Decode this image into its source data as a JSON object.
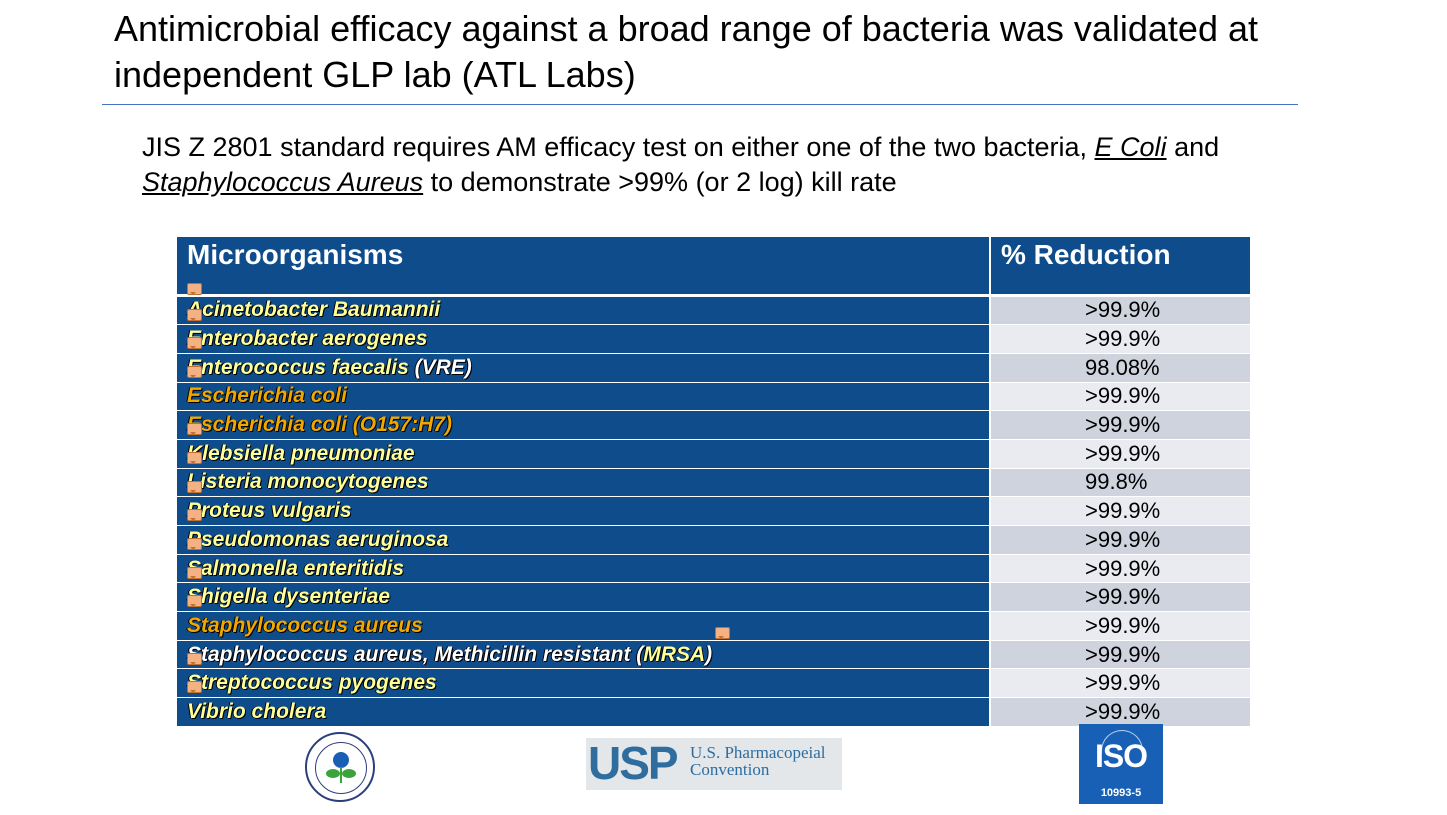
{
  "slide": {
    "title": "Antimicrobial efficacy against a broad range of bacteria was validated at independent GLP lab (ATL Labs)",
    "subtitle": {
      "part1": "JIS Z 2801 standard requires AM efficacy test on either one of the two bacteria, ",
      "organism1": "E Coli",
      "part2": " and ",
      "organism2": "Staphylococcus Aureus",
      "part3": " to demonstrate >99% (or 2 log) kill rate"
    }
  },
  "table": {
    "headers": [
      "Microorganisms",
      "% Reduction"
    ],
    "rows": [
      {
        "name": "Acinetobacter Baumannii",
        "suffix": "",
        "value": ">99.9%",
        "color": "yellow",
        "comment": true
      },
      {
        "name": "Enterobacter aerogenes",
        "suffix": "",
        "value": ">99.9%",
        "color": "yellow",
        "comment": true
      },
      {
        "name": "Enterococcus faecalis",
        "suffix": " (VRE)",
        "value": "98.08%",
        "color": "yellow",
        "comment": true
      },
      {
        "name": "Escherichia coli",
        "suffix": "",
        "value": ">99.9%",
        "color": "orange",
        "comment": false
      },
      {
        "name": "Escherichia coli (O157:H7)",
        "suffix": "",
        "value": ">99.9%",
        "color": "orange",
        "comment": true
      },
      {
        "name": "Klebsiella pneumoniae",
        "suffix": "",
        "value": ">99.9%",
        "color": "yellow",
        "comment": true
      },
      {
        "name": "Listeria monocytogenes",
        "suffix": "",
        "value": "99.8%",
        "color": "yellow",
        "comment": true
      },
      {
        "name": "Proteus vulgaris",
        "suffix": "",
        "value": ">99.9%",
        "color": "yellow",
        "comment": true
      },
      {
        "name": "Pseudomonas aeruginosa",
        "suffix": "",
        "value": ">99.9%",
        "color": "yellow",
        "comment": true
      },
      {
        "name": "Salmonella enteritidis",
        "suffix": "",
        "value": ">99.9%",
        "color": "yellow",
        "comment": true
      },
      {
        "name": "Shigella dysenteriae",
        "suffix": "",
        "value": ">99.9%",
        "color": "yellow",
        "comment": true
      },
      {
        "name": "Staphylococcus aureus",
        "suffix": "",
        "value": ">99.9%",
        "color": "orange",
        "comment": false
      },
      {
        "name": "Staphylococcus aureus, Methicillin resistant (",
        "suffix": "MRSA",
        "suffix2": ")",
        "value": ">99.9%",
        "color": "white",
        "comment": true
      },
      {
        "name": "Streptococcus pyogenes",
        "suffix": "",
        "value": ">99.9%",
        "color": "yellow",
        "comment": true
      },
      {
        "name": "Vibrio cholera",
        "suffix": "",
        "value": ">99.9%",
        "color": "yellow",
        "comment": false
      }
    ]
  },
  "logos": {
    "usp_mark": "USP",
    "usp_line1": "U.S. Pharmacopeial",
    "usp_line2": "Convention",
    "iso_word": "ISO",
    "iso_number": "10993-5"
  },
  "colors": {
    "header_bg": "#0f4c8c",
    "rule": "#4472c4",
    "name_yellow": "#ffff99",
    "name_orange": "#f0a800",
    "value_odd": "#cfd3de",
    "value_even": "#e9ebf1"
  }
}
